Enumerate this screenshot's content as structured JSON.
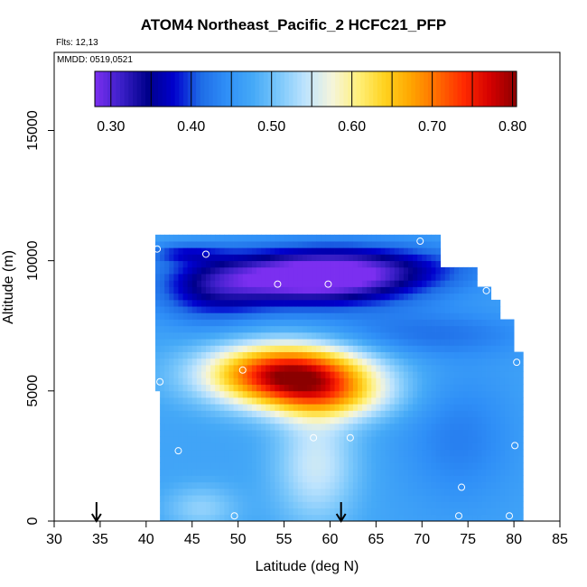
{
  "chart_data": {
    "type": "heatmap",
    "title": "ATOM4 Northeast_Pacific_2 HCFC21_PFP",
    "notes": {
      "flights": "Flts: 12,13",
      "dates": "MMDD: 0519,0521"
    },
    "xlabel": "Latitude (deg N)",
    "ylabel": "Altitude (m)",
    "xlim": [
      30,
      85
    ],
    "ylim": [
      0,
      18000
    ],
    "x_ticks": [
      "30",
      "35",
      "40",
      "45",
      "50",
      "55",
      "60",
      "65",
      "70",
      "75",
      "80",
      "85"
    ],
    "y_ticks": [
      "0",
      "5000",
      "10000",
      "15000"
    ],
    "colorbar": {
      "range": [
        0.28,
        0.805
      ],
      "tick_labels": [
        "0.30",
        "0.40",
        "0.50",
        "0.60",
        "0.70",
        "0.80"
      ],
      "tick_values": [
        0.3,
        0.4,
        0.5,
        0.6,
        0.7,
        0.8
      ],
      "stops": [
        "#7b2ff0",
        "#3b1fc8",
        "#00008b",
        "#0000cd",
        "#1e6be6",
        "#2f8ff7",
        "#45a9f7",
        "#7cc8fb",
        "#bfe4fd",
        "#f5f5dc",
        "#fff07a",
        "#ffd21e",
        "#ffa500",
        "#ff6b00",
        "#ff2a00",
        "#d40000",
        "#8b0000"
      ]
    },
    "profile_regions": [
      {
        "lat_min": 41.5,
        "lat_max": 79.5,
        "alt_min": 0,
        "alt_max": 8500
      },
      {
        "lat_min": 41.0,
        "lat_max": 72.0,
        "alt_min": 8500,
        "alt_max": 10800
      }
    ],
    "field_features": [
      {
        "lat": 41.5,
        "alt": 0,
        "value": 0.52
      },
      {
        "lat": 55,
        "alt": 5600,
        "value": 0.8
      },
      {
        "lat": 58,
        "alt": 9100,
        "value": 0.3
      },
      {
        "lat": 48,
        "alt": 10200,
        "value": 0.42
      },
      {
        "lat": 59,
        "alt": 2500,
        "value": 0.58
      }
    ],
    "sample_points": [
      {
        "lat": 41.2,
        "alt": 10450
      },
      {
        "lat": 46.5,
        "alt": 10250
      },
      {
        "lat": 54.3,
        "alt": 9100
      },
      {
        "lat": 59.8,
        "alt": 9100
      },
      {
        "lat": 69.8,
        "alt": 10750
      },
      {
        "lat": 77.0,
        "alt": 8850
      },
      {
        "lat": 80.3,
        "alt": 6100
      },
      {
        "lat": 41.5,
        "alt": 5350
      },
      {
        "lat": 50.5,
        "alt": 5800
      },
      {
        "lat": 58.2,
        "alt": 3200
      },
      {
        "lat": 62.2,
        "alt": 3200
      },
      {
        "lat": 43.5,
        "alt": 2700
      },
      {
        "lat": 80.1,
        "alt": 2900
      },
      {
        "lat": 74.3,
        "alt": 1300
      },
      {
        "lat": 49.6,
        "alt": 200
      },
      {
        "lat": 74.0,
        "alt": 200
      },
      {
        "lat": 79.5,
        "alt": 200
      }
    ],
    "markers": [
      {
        "type": "arrow-down",
        "lat": 34.6
      },
      {
        "type": "arrow-down",
        "lat": 61.2
      }
    ]
  }
}
